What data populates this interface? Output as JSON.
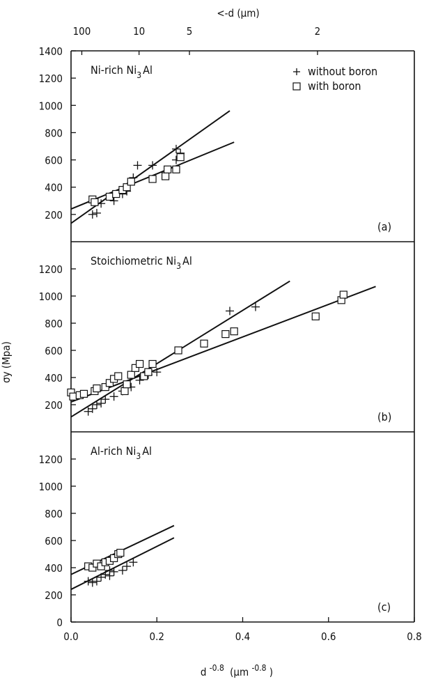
{
  "figure": {
    "top_axis_label": "<-d (µm)",
    "x_axis_label": "d<sup>-0.8</sup> (µm<sup>-0.8</sup>)",
    "x_axis_base": "d",
    "x_axis_exp": "-0.8",
    "x_axis_unit": "(µm",
    "x_axis_unit_exp": "-0.8",
    "x_axis_close": ")",
    "y_axis_label": "σy (Mpa)",
    "legend": {
      "without_boron": "without boron",
      "with_boron": "with boron"
    },
    "top_ticks": [
      "100",
      "10",
      "5",
      "2"
    ],
    "top_tick_values_um": [
      100,
      10,
      5,
      2
    ],
    "x_ticks": [
      "0.0",
      "0.2",
      "0.4",
      "0.6",
      "0.8"
    ],
    "x_tick_values": [
      0,
      0.2,
      0.4,
      0.6,
      0.8
    ]
  },
  "chart_data": [
    {
      "type": "scatter",
      "panel": "a",
      "title_prefix": "Ni-rich Ni",
      "title_sub": "3",
      "title_suffix": "Al",
      "tag": "(a)",
      "xlim": [
        0,
        0.8
      ],
      "ylim": [
        0,
        1400
      ],
      "y_ticks": [
        "200",
        "400",
        "600",
        "800",
        "1000",
        "1200",
        "1400"
      ],
      "y_tick_values": [
        200,
        400,
        600,
        800,
        1000,
        1200,
        1400
      ],
      "series": [
        {
          "name": "without boron",
          "marker": "plus",
          "points": [
            [
              0.05,
              200
            ],
            [
              0.06,
              210
            ],
            [
              0.07,
              280
            ],
            [
              0.1,
              300
            ],
            [
              0.12,
              350
            ],
            [
              0.13,
              370
            ],
            [
              0.145,
              470
            ],
            [
              0.155,
              560
            ],
            [
              0.19,
              560
            ],
            [
              0.245,
              600
            ],
            [
              0.245,
              680
            ],
            [
              0.255,
              650
            ]
          ],
          "fit": [
            [
              0.0,
              135
            ],
            [
              0.37,
              960
            ]
          ]
        },
        {
          "name": "with boron",
          "marker": "square",
          "points": [
            [
              0.05,
              310
            ],
            [
              0.055,
              290
            ],
            [
              0.09,
              330
            ],
            [
              0.105,
              350
            ],
            [
              0.12,
              380
            ],
            [
              0.13,
              400
            ],
            [
              0.14,
              440
            ],
            [
              0.19,
              460
            ],
            [
              0.22,
              480
            ],
            [
              0.225,
              530
            ],
            [
              0.245,
              530
            ],
            [
              0.255,
              620
            ]
          ],
          "fit": [
            [
              0.0,
              240
            ],
            [
              0.38,
              730
            ]
          ]
        }
      ]
    },
    {
      "type": "scatter",
      "panel": "b",
      "title_prefix": "Stoichiometric Ni",
      "title_sub": "3",
      "title_suffix": "Al",
      "tag": "(b)",
      "xlim": [
        0,
        0.8
      ],
      "ylim": [
        0,
        1400
      ],
      "y_ticks": [
        "200",
        "400",
        "600",
        "800",
        "1000",
        "1200"
      ],
      "y_tick_values": [
        200,
        400,
        600,
        800,
        1000,
        1200
      ],
      "series": [
        {
          "name": "without boron",
          "marker": "plus",
          "points": [
            [
              0.04,
              150
            ],
            [
              0.05,
              170
            ],
            [
              0.06,
              200
            ],
            [
              0.07,
              210
            ],
            [
              0.08,
              240
            ],
            [
              0.1,
              260
            ],
            [
              0.12,
              300
            ],
            [
              0.14,
              330
            ],
            [
              0.16,
              380
            ],
            [
              0.18,
              420
            ],
            [
              0.2,
              440
            ],
            [
              0.37,
              890
            ],
            [
              0.43,
              920
            ]
          ],
          "fit": [
            [
              0.0,
              110
            ],
            [
              0.51,
              1110
            ]
          ]
        },
        {
          "name": "with boron",
          "marker": "square",
          "points": [
            [
              0.0,
              290
            ],
            [
              0.005,
              260
            ],
            [
              0.02,
              270
            ],
            [
              0.03,
              280
            ],
            [
              0.055,
              300
            ],
            [
              0.06,
              320
            ],
            [
              0.08,
              330
            ],
            [
              0.09,
              360
            ],
            [
              0.1,
              390
            ],
            [
              0.11,
              410
            ],
            [
              0.125,
              300
            ],
            [
              0.13,
              350
            ],
            [
              0.14,
              420
            ],
            [
              0.15,
              470
            ],
            [
              0.16,
              500
            ],
            [
              0.17,
              410
            ],
            [
              0.18,
              440
            ],
            [
              0.19,
              500
            ],
            [
              0.25,
              600
            ],
            [
              0.31,
              650
            ],
            [
              0.36,
              720
            ],
            [
              0.38,
              740
            ],
            [
              0.57,
              850
            ],
            [
              0.63,
              970
            ],
            [
              0.635,
              1010
            ]
          ],
          "fit": [
            [
              0.0,
              220
            ],
            [
              0.71,
              1070
            ]
          ]
        }
      ]
    },
    {
      "type": "scatter",
      "panel": "c",
      "title_prefix": "Al-rich Ni",
      "title_sub": "3",
      "title_suffix": "Al",
      "tag": "(c)",
      "xlim": [
        0,
        0.8
      ],
      "ylim": [
        0,
        1400
      ],
      "y_ticks": [
        "0",
        "200",
        "400",
        "600",
        "800",
        "1000",
        "1200"
      ],
      "y_tick_values": [
        0,
        200,
        400,
        600,
        800,
        1000,
        1200
      ],
      "series": [
        {
          "name": "without boron",
          "marker": "plus",
          "points": [
            [
              0.04,
              300
            ],
            [
              0.05,
              290
            ],
            [
              0.06,
              300
            ],
            [
              0.07,
              330
            ],
            [
              0.08,
              350
            ],
            [
              0.09,
              340
            ],
            [
              0.1,
              370
            ],
            [
              0.12,
              380
            ],
            [
              0.13,
              410
            ],
            [
              0.145,
              440
            ],
            [
              0.09,
              380
            ]
          ],
          "fit": [
            [
              0.0,
              240
            ],
            [
              0.24,
              620
            ]
          ]
        },
        {
          "name": "with boron",
          "marker": "square",
          "points": [
            [
              0.04,
              410
            ],
            [
              0.05,
              400
            ],
            [
              0.06,
              430
            ],
            [
              0.07,
              410
            ],
            [
              0.08,
              440
            ],
            [
              0.09,
              450
            ],
            [
              0.1,
              470
            ],
            [
              0.11,
              500
            ],
            [
              0.115,
              510
            ]
          ],
          "fit": [
            [
              0.0,
              350
            ],
            [
              0.24,
              710
            ]
          ]
        }
      ]
    }
  ]
}
